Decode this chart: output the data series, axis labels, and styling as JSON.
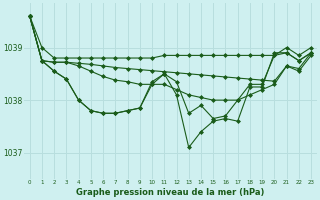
{
  "title": "Graphe pression niveau de la mer (hPa)",
  "background_color": "#cff0f0",
  "grid_color": "#b8dede",
  "line_color": "#1a5c1a",
  "xlim": [
    -0.5,
    23.5
  ],
  "ylim": [
    1036.5,
    1039.85
  ],
  "yticks": [
    1037,
    1038,
    1039
  ],
  "xticks": [
    0,
    1,
    2,
    3,
    4,
    5,
    6,
    7,
    8,
    9,
    10,
    11,
    12,
    13,
    14,
    15,
    16,
    17,
    18,
    19,
    20,
    21,
    22,
    23
  ],
  "series": [
    {
      "x": [
        0,
        1,
        2,
        3,
        4,
        5,
        6,
        7,
        8,
        9,
        10,
        11,
        12,
        13,
        14,
        15,
        16,
        17,
        18,
        19,
        20,
        21,
        22,
        23
      ],
      "y": [
        1039.6,
        1039.0,
        1038.8,
        1038.8,
        1038.8,
        1038.8,
        1038.8,
        1038.8,
        1038.8,
        1038.8,
        1038.8,
        1038.85,
        1038.85,
        1038.85,
        1038.85,
        1038.85,
        1038.85,
        1038.85,
        1038.85,
        1038.85,
        1038.85,
        1039.0,
        1038.85,
        1039.0
      ],
      "marker": "D",
      "markersize": 2
    },
    {
      "x": [
        0,
        1,
        2,
        3,
        4,
        5,
        6,
        7,
        8,
        9,
        10,
        11,
        12,
        13,
        14,
        15,
        16,
        17,
        18,
        19,
        20,
        21,
        22,
        23
      ],
      "y": [
        1039.6,
        1038.75,
        1038.72,
        1038.72,
        1038.7,
        1038.68,
        1038.65,
        1038.62,
        1038.6,
        1038.58,
        1038.56,
        1038.54,
        1038.52,
        1038.5,
        1038.48,
        1038.46,
        1038.44,
        1038.42,
        1038.4,
        1038.38,
        1038.36,
        1038.65,
        1038.55,
        1038.85
      ],
      "marker": "D",
      "markersize": 2
    },
    {
      "x": [
        0,
        1,
        2,
        3,
        4,
        5,
        6,
        7,
        8,
        9,
        10,
        11,
        12,
        13,
        14,
        15,
        16,
        17,
        18,
        19,
        20,
        21,
        22,
        23
      ],
      "y": [
        1039.6,
        1038.75,
        1038.72,
        1038.72,
        1038.65,
        1038.55,
        1038.45,
        1038.38,
        1038.35,
        1038.3,
        1038.3,
        1038.3,
        1038.2,
        1038.1,
        1038.05,
        1038.0,
        1038.0,
        1038.0,
        1038.1,
        1038.2,
        1038.3,
        1038.65,
        1038.6,
        1038.9
      ],
      "marker": "D",
      "markersize": 2
    },
    {
      "x": [
        0,
        1,
        2,
        3,
        4,
        5,
        6,
        7,
        8,
        9,
        10,
        11,
        12,
        13,
        14,
        15,
        16,
        17,
        18,
        19,
        20,
        21,
        22,
        23
      ],
      "y": [
        1039.6,
        1038.75,
        1038.55,
        1038.4,
        1038.0,
        1037.8,
        1037.75,
        1037.75,
        1037.8,
        1037.85,
        1038.35,
        1038.5,
        1038.35,
        1037.75,
        1037.9,
        1037.65,
        1037.7,
        1038.0,
        1038.3,
        1038.3,
        1038.85,
        1038.9,
        1038.75,
        1038.9
      ],
      "marker": "D",
      "markersize": 2
    },
    {
      "x": [
        0,
        1,
        2,
        3,
        4,
        5,
        6,
        7,
        8,
        9,
        10,
        11,
        12,
        13,
        14,
        15,
        16,
        17,
        18,
        19,
        20,
        21,
        22,
        23
      ],
      "y": [
        1039.6,
        1038.75,
        1038.55,
        1038.4,
        1038.0,
        1037.8,
        1037.75,
        1037.75,
        1037.8,
        1037.85,
        1038.3,
        1038.5,
        1038.1,
        1037.1,
        1037.4,
        1037.6,
        1037.65,
        1037.6,
        1038.25,
        1038.25,
        1038.9,
        1038.9,
        1038.75,
        1038.9
      ],
      "marker": "D",
      "markersize": 2
    }
  ]
}
